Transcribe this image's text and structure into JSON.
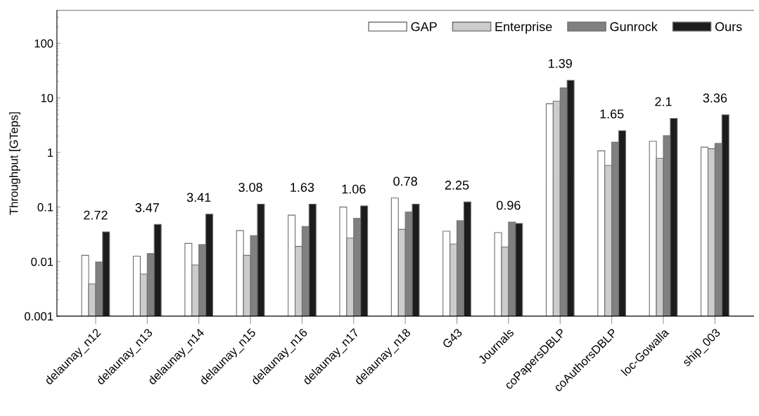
{
  "chart_data": {
    "type": "bar",
    "ylabel": "Throughput [GTeps]",
    "log": "y",
    "ylim": [
      0.001,
      400
    ],
    "yticks": [
      0.001,
      0.01,
      0.1,
      1,
      10,
      100
    ],
    "grid": false,
    "legend": "top right",
    "categories": [
      "delaunay_n12",
      "delaunay_n13",
      "delaunay_n14",
      "delaunay_n15",
      "delaunay_n16",
      "delaunay_n17",
      "delaunay_n18",
      "G43",
      "Journals",
      "coPapersDBLP",
      "coAuthorsDBLP",
      "loc-Gowalla",
      "ship_003"
    ],
    "series": [
      {
        "name": "GAP",
        "color": "#ffffff",
        "values": [
          0.013,
          0.0126,
          0.0215,
          0.037,
          0.071,
          0.1,
          0.146,
          0.036,
          0.034,
          7.8,
          1.07,
          1.6,
          1.25
        ]
      },
      {
        "name": "Enterprise",
        "color": "#cccccc",
        "values": [
          0.0039,
          0.0059,
          0.0087,
          0.013,
          0.019,
          0.027,
          0.039,
          0.021,
          0.0185,
          8.7,
          0.58,
          0.78,
          1.17
        ]
      },
      {
        "name": "Gunrock",
        "color": "#808080",
        "values": [
          0.0098,
          0.014,
          0.0205,
          0.03,
          0.044,
          0.062,
          0.081,
          0.056,
          0.053,
          15.2,
          1.54,
          2.03,
          1.46
        ]
      },
      {
        "name": "Ours",
        "color": "#1c1c1c",
        "values": [
          0.035,
          0.048,
          0.074,
          0.113,
          0.113,
          0.105,
          0.113,
          0.124,
          0.05,
          21,
          2.5,
          4.2,
          4.9
        ]
      }
    ],
    "annotations": [
      "2.72",
      "3.47",
      "3.41",
      "3.08",
      "1.63",
      "1.06",
      "0.78",
      "2.25",
      "0.96",
      "1.39",
      "1.65",
      "2.1",
      "3.36"
    ]
  }
}
